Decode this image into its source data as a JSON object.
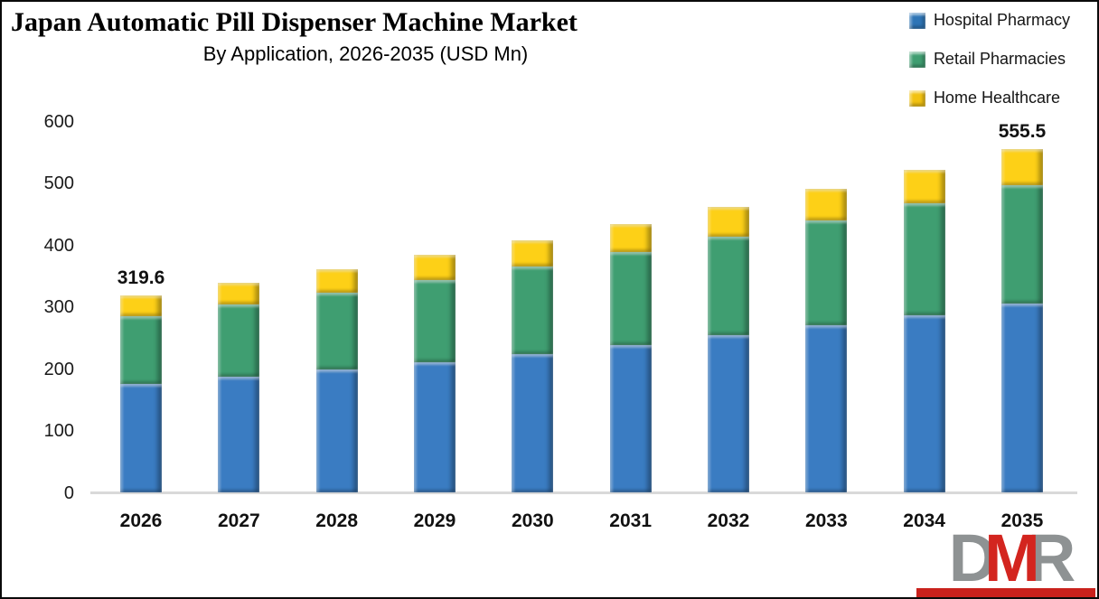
{
  "header": {
    "title": "Japan Automatic Pill Dispenser Machine Market",
    "subtitle": "By Application, 2026-2035 (USD Mn)"
  },
  "legend": {
    "items": [
      {
        "label": "Hospital Pharmacy",
        "color": "#2e75b6"
      },
      {
        "label": "Retail Pharmacies",
        "color": "#3f9e71"
      },
      {
        "label": "Home Healthcare",
        "color": "#f2c211"
      }
    ]
  },
  "chart_data": {
    "type": "bar",
    "subtype": "stacked",
    "title": "Japan Automatic Pill Dispenser Machine Market",
    "subtitle": "By Application, 2026-2035 (USD Mn)",
    "categories": [
      "2026",
      "2027",
      "2028",
      "2029",
      "2030",
      "2031",
      "2032",
      "2033",
      "2034",
      "2035"
    ],
    "series": [
      {
        "name": "Hospital Pharmacy",
        "color": "#3a7cc2",
        "values": [
          175.8,
          186.9,
          198.8,
          211.4,
          224.7,
          239.0,
          254.1,
          270.2,
          287.3,
          305.5
        ]
      },
      {
        "name": "Retail Pharmacies",
        "color": "#3f9e71",
        "values": [
          110.3,
          117.2,
          124.7,
          132.6,
          141.0,
          149.9,
          159.4,
          169.5,
          180.2,
          191.6
        ]
      },
      {
        "name": "Home Healthcare",
        "color": "#fdd017",
        "values": [
          33.5,
          35.7,
          37.9,
          40.3,
          42.9,
          45.6,
          48.5,
          51.6,
          54.9,
          58.4
        ]
      }
    ],
    "totals": [
      319.6,
      339.8,
      361.4,
      384.3,
      408.6,
      434.5,
      462.0,
      491.3,
      522.4,
      555.5
    ],
    "point_labels": [
      {
        "category_index": 0,
        "text": "319.6"
      },
      {
        "category_index": 9,
        "text": "555.5"
      }
    ],
    "xlabel": "",
    "ylabel": "",
    "ylim": [
      0,
      600
    ],
    "yticks": [
      0,
      100,
      200,
      300,
      400,
      500,
      600
    ],
    "grid": false,
    "legend_position": "top-right",
    "axis_line_color": "#d9d9d9"
  },
  "logo": {
    "letters": [
      {
        "char": "D",
        "color": "#8e9293"
      },
      {
        "char": "M",
        "color": "#d3251f"
      },
      {
        "char": "R",
        "color": "#8e9293"
      }
    ],
    "bar_color": "#c9211c"
  }
}
